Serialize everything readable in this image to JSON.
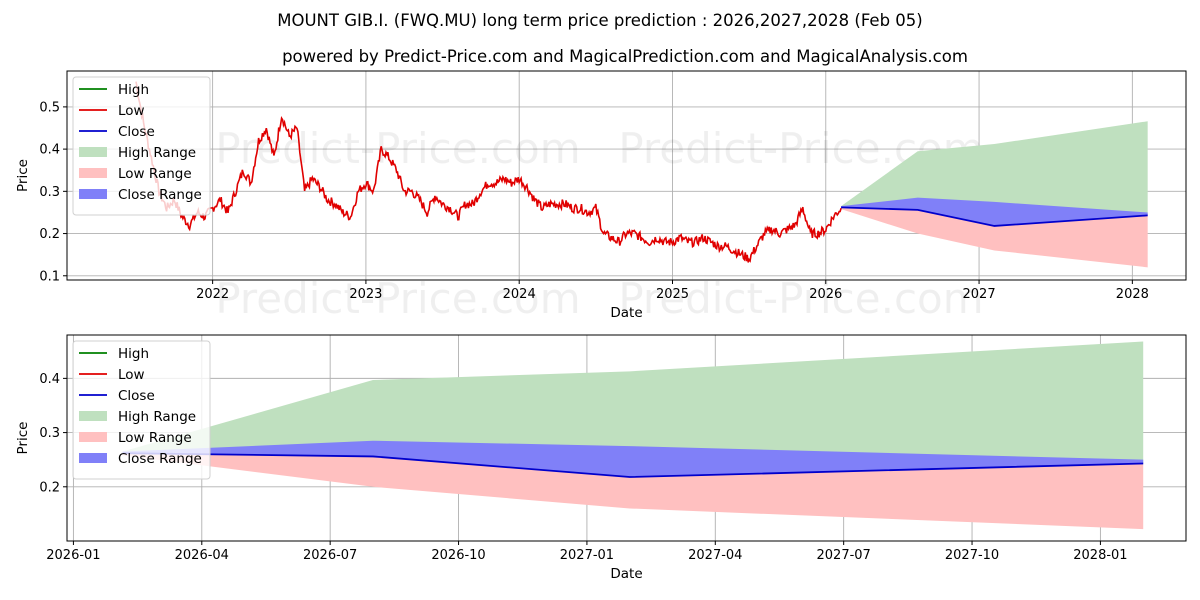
{
  "titles": {
    "main": "MOUNT GIB.I. (FWQ.MU) long term price prediction : 2026,2027,2028 (Feb 05)",
    "subtitle": "powered by Predict-Price.com and MagicalPrediction.com and MagicalAnalysis.com"
  },
  "watermark": "Predict-Price.com",
  "legend": [
    "High",
    "Low",
    "Close",
    "High Range",
    "Low Range",
    "Close Range"
  ],
  "colors": {
    "high": "#008000",
    "low": "#e00000",
    "close": "#0000cc",
    "high_range": "#bfe0bf",
    "low_range": "#ffc0c0",
    "close_range": "#8080f8",
    "grid": "#b0b0b0",
    "axis": "#000000"
  },
  "chart_data": [
    {
      "type": "line",
      "name": "history-and-forecast",
      "xlabel": "Date",
      "ylabel": "Price",
      "xlim": [
        2021.05,
        2028.35
      ],
      "ylim": [
        0.09,
        0.585
      ],
      "xticks": [
        2022,
        2023,
        2024,
        2025,
        2026,
        2027,
        2028
      ],
      "xtick_labels": [
        "2022",
        "2023",
        "2024",
        "2025",
        "2026",
        "2027",
        "2028"
      ],
      "yticks": [
        0.1,
        0.2,
        0.3,
        0.4,
        0.5
      ],
      "ytick_labels": [
        "0.1",
        "0.2",
        "0.3",
        "0.4",
        "0.5"
      ],
      "legend_position": "top-left",
      "low_history": {
        "x": [
          2021.5,
          2021.55,
          2021.6,
          2021.65,
          2021.7,
          2021.75,
          2021.8,
          2021.85,
          2021.9,
          2021.95,
          2022.0,
          2022.05,
          2022.1,
          2022.15,
          2022.2,
          2022.25,
          2022.3,
          2022.35,
          2022.4,
          2022.45,
          2022.5,
          2022.55,
          2022.6,
          2022.65,
          2022.7,
          2022.75,
          2022.8,
          2022.85,
          2022.9,
          2022.95,
          2023.0,
          2023.05,
          2023.1,
          2023.15,
          2023.2,
          2023.25,
          2023.3,
          2023.35,
          2023.4,
          2023.45,
          2023.5,
          2023.55,
          2023.6,
          2023.65,
          2023.7,
          2023.75,
          2023.8,
          2023.85,
          2023.9,
          2023.95,
          2024.0,
          2024.05,
          2024.1,
          2024.15,
          2024.2,
          2024.25,
          2024.3,
          2024.35,
          2024.4,
          2024.45,
          2024.5,
          2024.55,
          2024.6,
          2024.65,
          2024.7,
          2024.75,
          2024.8,
          2024.85,
          2024.9,
          2024.95,
          2025.0,
          2025.05,
          2025.1,
          2025.15,
          2025.2,
          2025.25,
          2025.3,
          2025.35,
          2025.4,
          2025.45,
          2025.5,
          2025.55,
          2025.6,
          2025.65,
          2025.7,
          2025.75,
          2025.8,
          2025.85,
          2025.9,
          2025.95,
          2026.0,
          2026.05,
          2026.1
        ],
        "y": [
          0.56,
          0.46,
          0.38,
          0.3,
          0.26,
          0.28,
          0.24,
          0.22,
          0.25,
          0.24,
          0.26,
          0.28,
          0.25,
          0.3,
          0.35,
          0.32,
          0.42,
          0.45,
          0.38,
          0.48,
          0.43,
          0.45,
          0.3,
          0.33,
          0.31,
          0.28,
          0.27,
          0.25,
          0.24,
          0.3,
          0.32,
          0.3,
          0.4,
          0.38,
          0.35,
          0.3,
          0.3,
          0.28,
          0.25,
          0.29,
          0.27,
          0.26,
          0.24,
          0.27,
          0.27,
          0.3,
          0.32,
          0.32,
          0.33,
          0.32,
          0.33,
          0.31,
          0.28,
          0.26,
          0.27,
          0.27,
          0.27,
          0.26,
          0.26,
          0.25,
          0.26,
          0.2,
          0.19,
          0.18,
          0.2,
          0.2,
          0.19,
          0.18,
          0.19,
          0.18,
          0.18,
          0.19,
          0.18,
          0.18,
          0.19,
          0.18,
          0.17,
          0.17,
          0.16,
          0.15,
          0.14,
          0.17,
          0.2,
          0.21,
          0.2,
          0.21,
          0.22,
          0.26,
          0.2,
          0.2,
          0.21,
          0.24,
          0.26
        ]
      },
      "close_forecast": {
        "x": [
          2026.1,
          2026.6,
          2027.1,
          2028.1
        ],
        "y": [
          0.262,
          0.256,
          0.218,
          0.243
        ]
      },
      "high_range": {
        "x": [
          2026.1,
          2026.6,
          2027.1,
          2028.1
        ],
        "upper": [
          0.265,
          0.395,
          0.412,
          0.466
        ],
        "lower": [
          0.262,
          0.256,
          0.218,
          0.243
        ]
      },
      "low_range": {
        "x": [
          2026.1,
          2026.6,
          2027.1,
          2028.1
        ],
        "upper": [
          0.262,
          0.256,
          0.218,
          0.243
        ],
        "lower": [
          0.258,
          0.2,
          0.16,
          0.12
        ]
      },
      "close_range": {
        "x": [
          2026.1,
          2026.6,
          2027.1,
          2028.1
        ],
        "upper": [
          0.265,
          0.285,
          0.275,
          0.25
        ],
        "lower": [
          0.262,
          0.256,
          0.218,
          0.243
        ]
      }
    },
    {
      "type": "line",
      "name": "forecast-zoom",
      "xlabel": "Date",
      "ylabel": "Price",
      "xlim": [
        -0.15,
        26.0
      ],
      "ylim": [
        0.1,
        0.48
      ],
      "xticks": [
        0,
        3,
        6,
        9,
        12,
        15,
        18,
        21,
        24
      ],
      "xtick_labels": [
        "2026-01",
        "2026-04",
        "2026-07",
        "2026-10",
        "2027-01",
        "2027-04",
        "2027-07",
        "2027-10",
        "2028-01"
      ],
      "yticks": [
        0.2,
        0.3,
        0.4
      ],
      "ytick_labels": [
        "0.2",
        "0.3",
        "0.4"
      ],
      "legend_position": "top-left",
      "close_forecast": {
        "x": [
          1.15,
          7.0,
          13.0,
          25.0
        ],
        "y": [
          0.262,
          0.256,
          0.218,
          0.243
        ]
      },
      "high_range": {
        "x": [
          1.15,
          7.0,
          13.0,
          25.0
        ],
        "upper": [
          0.265,
          0.397,
          0.413,
          0.468
        ],
        "lower": [
          0.262,
          0.256,
          0.218,
          0.243
        ]
      },
      "low_range": {
        "x": [
          1.15,
          7.0,
          13.0,
          25.0
        ],
        "upper": [
          0.262,
          0.256,
          0.218,
          0.243
        ],
        "lower": [
          0.258,
          0.2,
          0.16,
          0.122
        ]
      },
      "close_range": {
        "x": [
          1.15,
          7.0,
          13.0,
          25.0
        ],
        "upper": [
          0.265,
          0.285,
          0.275,
          0.25
        ],
        "lower": [
          0.262,
          0.256,
          0.218,
          0.243
        ]
      }
    }
  ]
}
